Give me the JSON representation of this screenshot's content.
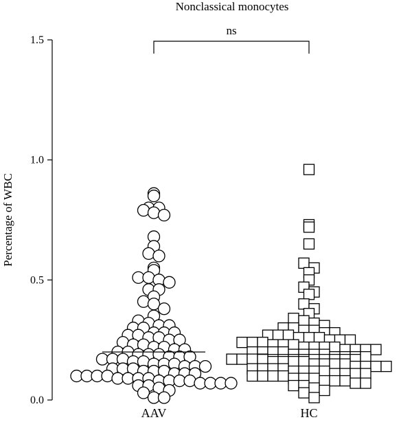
{
  "chart_data": {
    "type": "scatter",
    "title": "Nonclassical monocytes",
    "ylabel": "Percentage of WBC",
    "xlabel": "",
    "ylim": [
      0,
      1.5
    ],
    "yticks": [
      0.0,
      0.5,
      1.0,
      1.5
    ],
    "ytick_labels": [
      "0.0",
      "0.5",
      "1.0",
      "1.5"
    ],
    "categories": [
      "AAV",
      "HC"
    ],
    "significance": {
      "label": "ns",
      "between": [
        "AAV",
        "HC"
      ]
    },
    "series": [
      {
        "category": "AAV",
        "marker": "circle",
        "median": 0.2,
        "values": [
          0.86,
          0.85,
          0.8,
          0.8,
          0.79,
          0.78,
          0.77,
          0.68,
          0.64,
          0.61,
          0.6,
          0.55,
          0.54,
          0.51,
          0.51,
          0.5,
          0.49,
          0.46,
          0.46,
          0.43,
          0.41,
          0.4,
          0.38,
          0.35,
          0.33,
          0.32,
          0.31,
          0.31,
          0.3,
          0.3,
          0.28,
          0.28,
          0.28,
          0.27,
          0.27,
          0.26,
          0.26,
          0.25,
          0.25,
          0.24,
          0.23,
          0.23,
          0.22,
          0.22,
          0.21,
          0.21,
          0.2,
          0.2,
          0.19,
          0.19,
          0.19,
          0.18,
          0.18,
          0.18,
          0.17,
          0.17,
          0.17,
          0.16,
          0.16,
          0.15,
          0.15,
          0.15,
          0.14,
          0.14,
          0.14,
          0.13,
          0.13,
          0.13,
          0.12,
          0.12,
          0.12,
          0.11,
          0.11,
          0.11,
          0.1,
          0.1,
          0.1,
          0.1,
          0.09,
          0.09,
          0.09,
          0.09,
          0.08,
          0.08,
          0.08,
          0.08,
          0.07,
          0.07,
          0.07,
          0.07,
          0.06,
          0.06,
          0.05,
          0.04,
          0.03,
          0.01,
          0.01
        ]
      },
      {
        "category": "HC",
        "marker": "square",
        "median": 0.19,
        "values": [
          0.96,
          0.73,
          0.72,
          0.65,
          0.57,
          0.55,
          0.53,
          0.5,
          0.47,
          0.45,
          0.44,
          0.4,
          0.38,
          0.36,
          0.34,
          0.33,
          0.32,
          0.31,
          0.3,
          0.3,
          0.29,
          0.29,
          0.28,
          0.28,
          0.27,
          0.27,
          0.27,
          0.26,
          0.26,
          0.26,
          0.25,
          0.25,
          0.25,
          0.24,
          0.24,
          0.24,
          0.23,
          0.23,
          0.23,
          0.22,
          0.22,
          0.22,
          0.22,
          0.21,
          0.21,
          0.21,
          0.21,
          0.2,
          0.2,
          0.2,
          0.2,
          0.19,
          0.19,
          0.19,
          0.19,
          0.18,
          0.18,
          0.18,
          0.18,
          0.17,
          0.17,
          0.17,
          0.17,
          0.16,
          0.16,
          0.16,
          0.16,
          0.15,
          0.15,
          0.15,
          0.15,
          0.14,
          0.14,
          0.14,
          0.14,
          0.13,
          0.13,
          0.13,
          0.13,
          0.12,
          0.12,
          0.12,
          0.12,
          0.11,
          0.11,
          0.11,
          0.11,
          0.1,
          0.1,
          0.1,
          0.1,
          0.09,
          0.09,
          0.09,
          0.08,
          0.08,
          0.08,
          0.07,
          0.07,
          0.06,
          0.06,
          0.05,
          0.04,
          0.03,
          0.01
        ]
      }
    ]
  }
}
